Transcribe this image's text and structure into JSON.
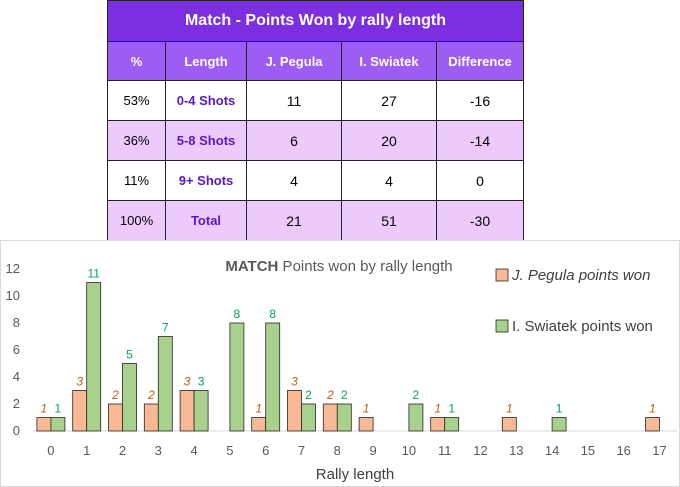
{
  "table": {
    "title": "Match - Points Won by rally length",
    "headers": [
      "%",
      "Length",
      "J. Pegula",
      "I. Swiatek",
      "Difference"
    ],
    "rows": [
      {
        "pct": "53%",
        "length": "0-4 Shots",
        "p1": "11",
        "p2": "27",
        "diff": "-16"
      },
      {
        "pct": "36%",
        "length": "5-8 Shots",
        "p1": "6",
        "p2": "20",
        "diff": "-14"
      },
      {
        "pct": "11%",
        "length": "9+ Shots",
        "p1": "4",
        "p2": "4",
        "diff": "0"
      },
      {
        "pct": "100%",
        "length": "Total",
        "p1": "21",
        "p2": "51",
        "diff": "-30"
      }
    ]
  },
  "chart_data": {
    "type": "bar",
    "title_bold": "MATCH",
    "title_rest": " Points won by rally length",
    "xlabel": "Rally length",
    "ylabel": "",
    "ylim": [
      0,
      12
    ],
    "yticks": [
      0,
      2,
      4,
      6,
      8,
      10,
      12
    ],
    "categories": [
      "0",
      "1",
      "2",
      "3",
      "4",
      "5",
      "6",
      "7",
      "8",
      "9",
      "10",
      "11",
      "12",
      "13",
      "14",
      "15",
      "16",
      "17"
    ],
    "series": [
      {
        "name": "J. Pegula points won",
        "color": "#f8b994",
        "label_color": "#c55a11",
        "values": [
          1,
          3,
          2,
          2,
          3,
          0,
          1,
          3,
          2,
          1,
          0,
          1,
          0,
          1,
          0,
          0,
          0,
          1
        ],
        "labels": [
          "1",
          "3",
          "2",
          "2",
          "3",
          "",
          "1",
          "3",
          "2",
          "1",
          "",
          "1",
          "",
          "1",
          "",
          "",
          "",
          "1"
        ]
      },
      {
        "name": "I. Swiatek points won",
        "color": "#a9d18e",
        "label_color": "#00a650",
        "values": [
          1,
          11,
          5,
          7,
          3,
          8,
          8,
          2,
          2,
          0,
          2,
          1,
          0,
          0,
          1,
          0,
          0,
          0
        ],
        "labels": [
          "1",
          "11",
          "5",
          "7",
          "3",
          "8",
          "8",
          "2",
          "2",
          "",
          "2",
          "1",
          "",
          "",
          "1",
          "",
          "",
          ""
        ]
      }
    ],
    "legend": "right",
    "grid": false
  }
}
